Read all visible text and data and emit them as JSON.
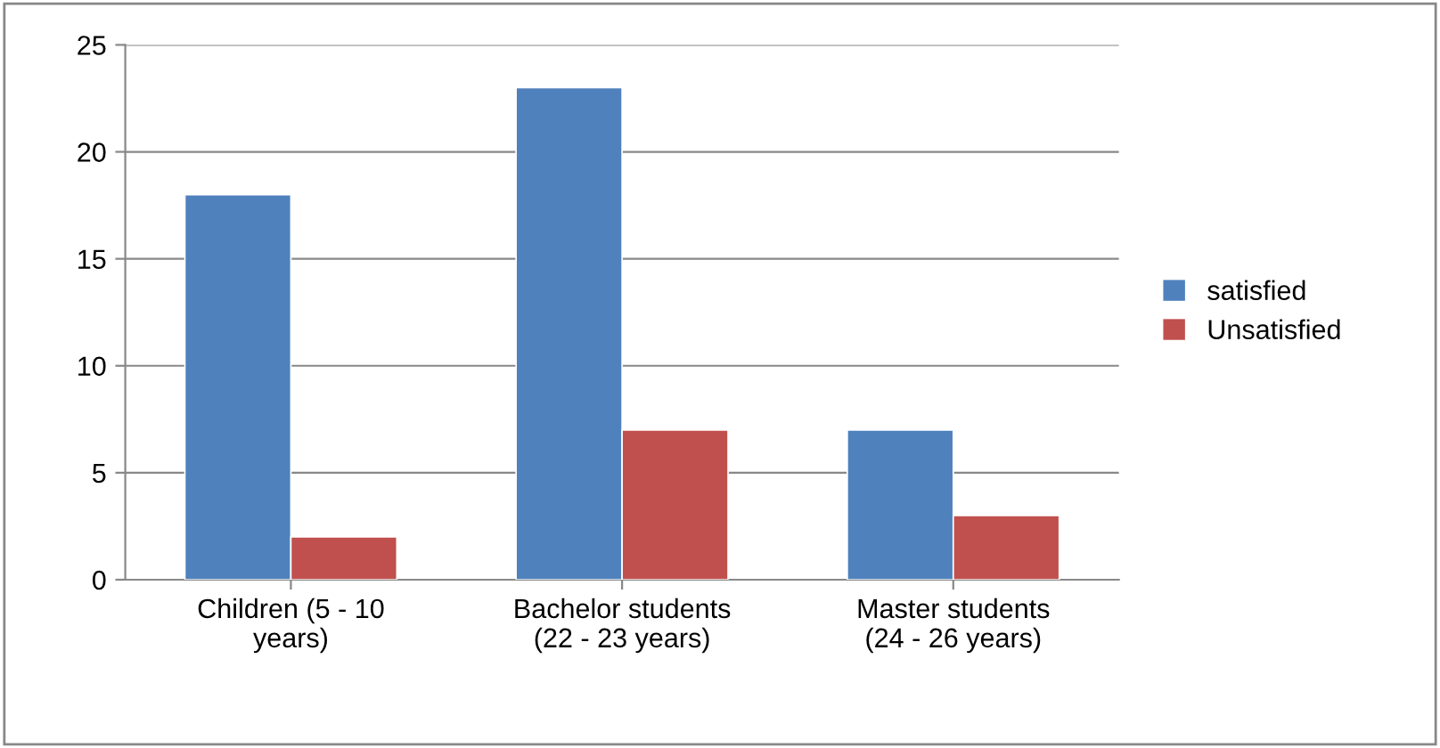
{
  "chart_data": {
    "type": "bar",
    "categories": [
      "Children (5 - 10\nyears)",
      "Bachelor students\n(22 - 23 years)",
      "Master students\n(24 - 26 years)"
    ],
    "series": [
      {
        "name": "satisfied",
        "color": "#4f81bd",
        "values": [
          18,
          23,
          7
        ]
      },
      {
        "name": "Unsatisfied",
        "color": "#c0504d",
        "values": [
          2,
          7,
          3
        ]
      }
    ],
    "ylim": [
      0,
      25
    ],
    "yticks": [
      0,
      5,
      10,
      15,
      20,
      25
    ],
    "grid": "y",
    "legend": "right"
  }
}
